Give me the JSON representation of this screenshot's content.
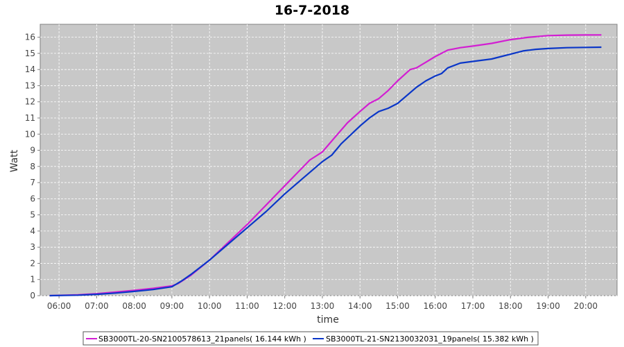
{
  "chart_data": {
    "type": "line",
    "title": "16-7-2018",
    "xlabel": "time",
    "ylabel": "Watt",
    "xlim": [
      "05:30",
      "20:50"
    ],
    "ylim": [
      0,
      16.8
    ],
    "x_ticks": [
      "06:00",
      "07:00",
      "08:00",
      "09:00",
      "10:00",
      "11:00",
      "12:00",
      "13:00",
      "14:00",
      "15:00",
      "16:00",
      "17:00",
      "18:00",
      "19:00",
      "20:00"
    ],
    "y_ticks": [
      0,
      1,
      2,
      3,
      4,
      5,
      6,
      7,
      8,
      9,
      10,
      11,
      12,
      13,
      14,
      15,
      16
    ],
    "grid": true,
    "legend_position": "bottom",
    "series": [
      {
        "name": "SB3000TL-20-SN2100578613_21panels( 16.144 kWh )",
        "color": "#d21ed2",
        "points": [
          [
            "05:45",
            0.0
          ],
          [
            "06:30",
            0.05
          ],
          [
            "07:00",
            0.12
          ],
          [
            "07:30",
            0.22
          ],
          [
            "08:00",
            0.33
          ],
          [
            "08:30",
            0.45
          ],
          [
            "09:00",
            0.6
          ],
          [
            "09:10",
            0.75
          ],
          [
            "09:30",
            1.25
          ],
          [
            "10:00",
            2.2
          ],
          [
            "10:30",
            3.3
          ],
          [
            "11:00",
            4.4
          ],
          [
            "11:30",
            5.6
          ],
          [
            "12:00",
            6.8
          ],
          [
            "12:20",
            7.6
          ],
          [
            "12:40",
            8.4
          ],
          [
            "13:00",
            8.9
          ],
          [
            "13:20",
            9.8
          ],
          [
            "13:40",
            10.7
          ],
          [
            "14:00",
            11.4
          ],
          [
            "14:15",
            11.9
          ],
          [
            "14:30",
            12.2
          ],
          [
            "14:45",
            12.7
          ],
          [
            "15:00",
            13.3
          ],
          [
            "15:20",
            14.0
          ],
          [
            "15:30",
            14.1
          ],
          [
            "15:45",
            14.45
          ],
          [
            "16:00",
            14.8
          ],
          [
            "16:20",
            15.2
          ],
          [
            "16:40",
            15.35
          ],
          [
            "17:00",
            15.45
          ],
          [
            "17:30",
            15.62
          ],
          [
            "18:00",
            15.85
          ],
          [
            "18:30",
            16.0
          ],
          [
            "19:00",
            16.1
          ],
          [
            "19:30",
            16.13
          ],
          [
            "20:00",
            16.14
          ],
          [
            "20:25",
            16.144
          ]
        ]
      },
      {
        "name": "SB3000TL-21-SN2130032031_19panels( 15.382 kWh )",
        "color": "#0a36c8",
        "points": [
          [
            "05:45",
            0.0
          ],
          [
            "06:30",
            0.03
          ],
          [
            "07:00",
            0.08
          ],
          [
            "07:30",
            0.16
          ],
          [
            "08:00",
            0.26
          ],
          [
            "08:30",
            0.38
          ],
          [
            "09:00",
            0.55
          ],
          [
            "09:15",
            0.9
          ],
          [
            "09:30",
            1.3
          ],
          [
            "10:00",
            2.2
          ],
          [
            "10:30",
            3.2
          ],
          [
            "11:00",
            4.2
          ],
          [
            "11:30",
            5.2
          ],
          [
            "12:00",
            6.3
          ],
          [
            "12:30",
            7.3
          ],
          [
            "13:00",
            8.3
          ],
          [
            "13:15",
            8.7
          ],
          [
            "13:30",
            9.4
          ],
          [
            "14:00",
            10.5
          ],
          [
            "14:15",
            11.0
          ],
          [
            "14:30",
            11.4
          ],
          [
            "14:45",
            11.6
          ],
          [
            "15:00",
            11.9
          ],
          [
            "15:30",
            12.9
          ],
          [
            "15:45",
            13.3
          ],
          [
            "16:00",
            13.6
          ],
          [
            "16:10",
            13.75
          ],
          [
            "16:20",
            14.1
          ],
          [
            "16:40",
            14.4
          ],
          [
            "17:00",
            14.5
          ],
          [
            "17:30",
            14.65
          ],
          [
            "17:45",
            14.8
          ],
          [
            "18:00",
            14.95
          ],
          [
            "18:20",
            15.15
          ],
          [
            "18:40",
            15.25
          ],
          [
            "19:00",
            15.3
          ],
          [
            "19:30",
            15.35
          ],
          [
            "20:00",
            15.37
          ],
          [
            "20:25",
            15.382
          ]
        ]
      }
    ]
  }
}
